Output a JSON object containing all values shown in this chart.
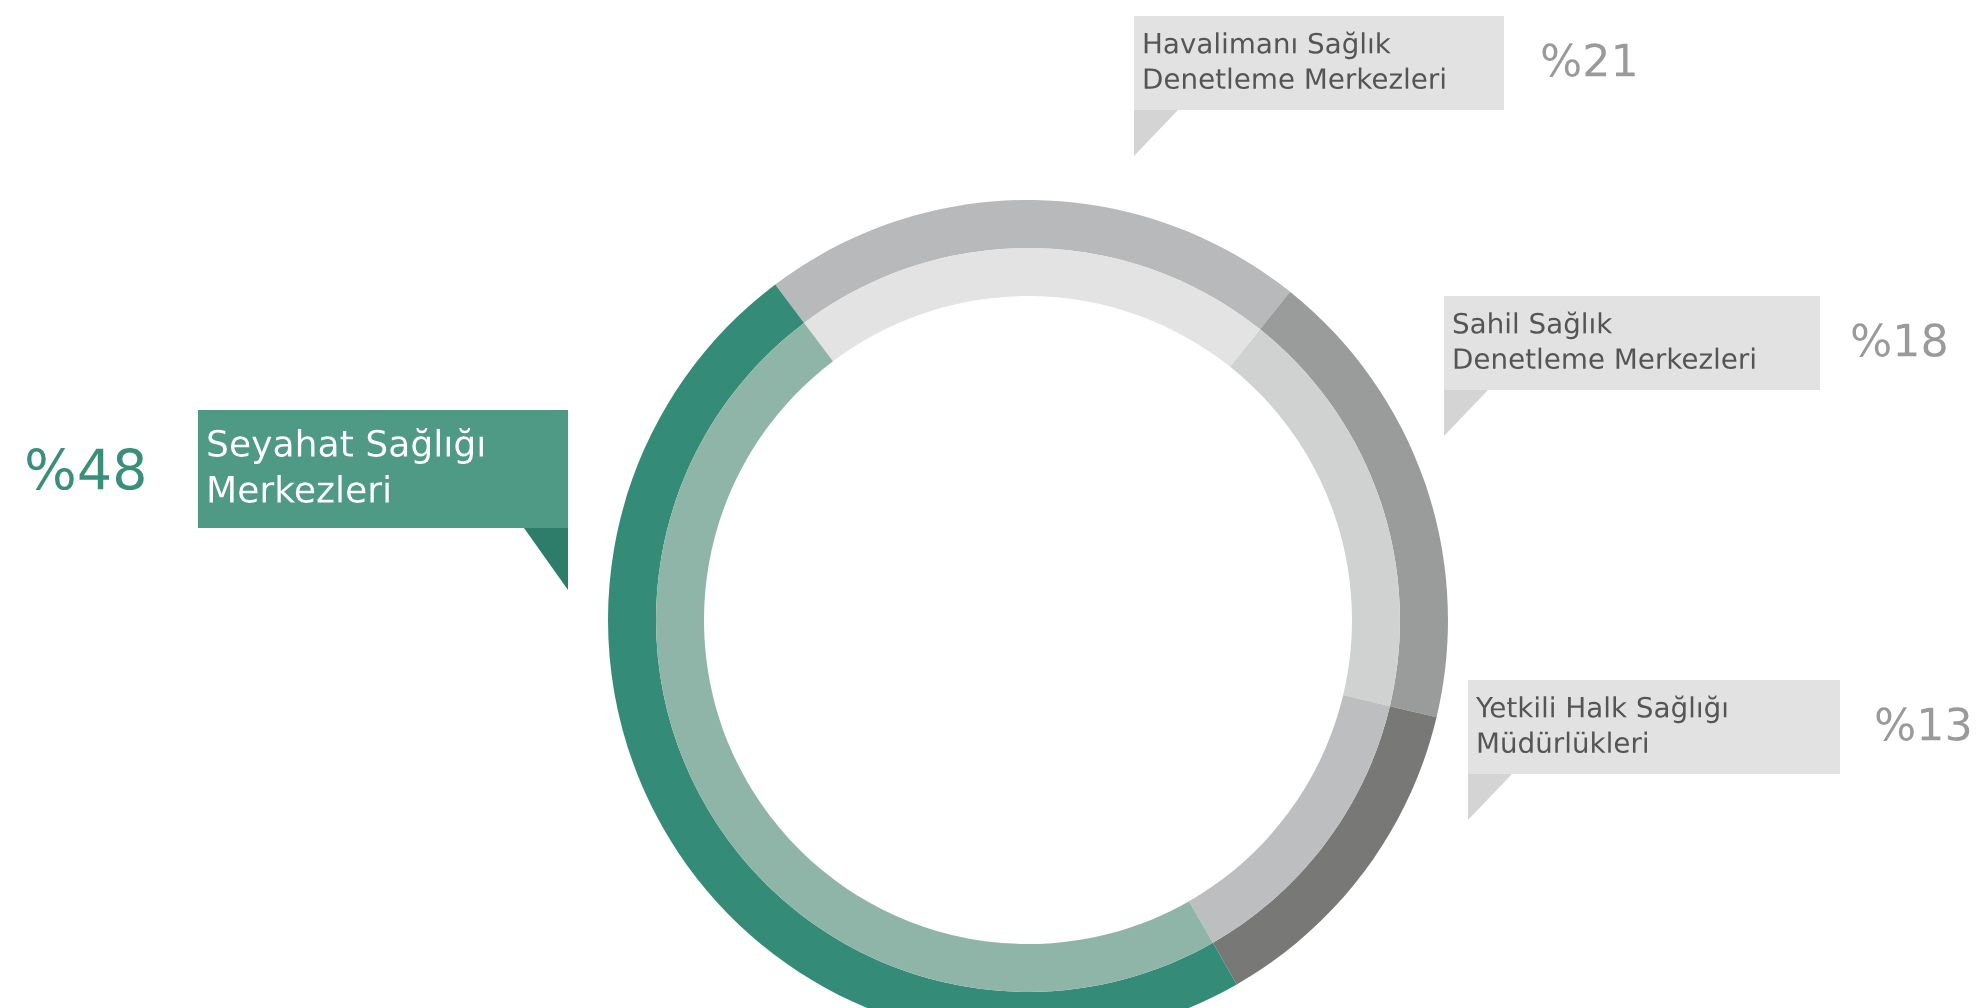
{
  "chart_data": {
    "type": "donut",
    "categories": [
      "Havalimanı Sağlık\nDenetleme Merkezleri",
      "Sahil Sağlık\nDenetleme Merkezleri",
      "Yetkili Halk Sağlığı\nMüdürlükleri",
      "Seyahat Sağlığı\nMerkezleri"
    ],
    "series": [
      {
        "colors": [
          "#b8b9bb",
          "#9a9b9b",
          "#787876",
          "#348c78"
        ],
        "values": [
          21,
          18,
          13,
          48
        ]
      },
      {
        "colors": [
          "#e3e3e3",
          "#d0d1d1",
          "#bdbebf",
          "#8fb5a8"
        ],
        "values": [
          21,
          18,
          13,
          48
        ]
      }
    ],
    "value_labels": [
      "%21",
      "%18",
      "%13",
      "%48"
    ]
  }
}
